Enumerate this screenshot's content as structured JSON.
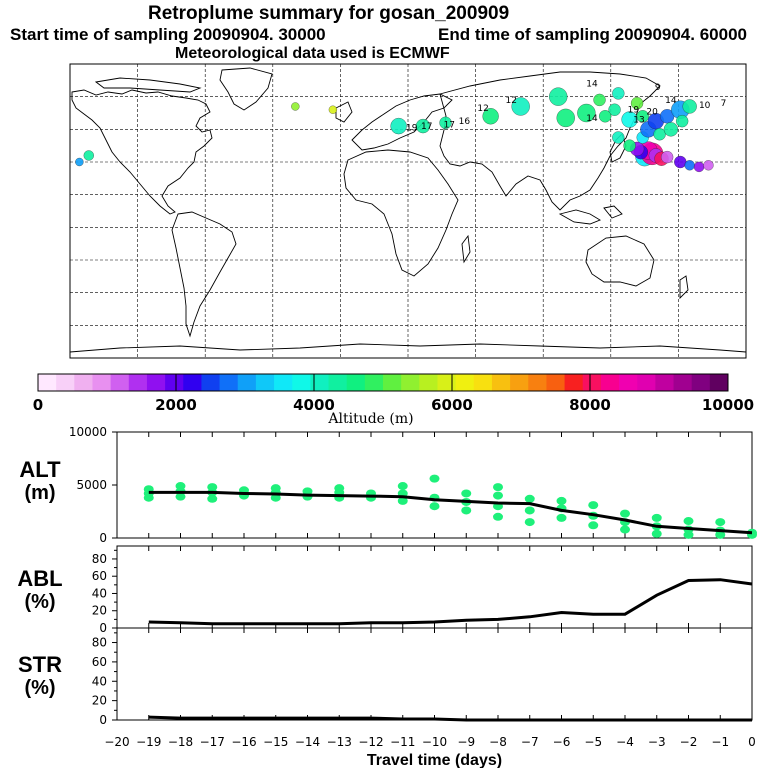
{
  "header": {
    "title": "Retroplume summary for gosan_200909",
    "start": "Start time of sampling 20090904. 30000",
    "end": "End time of sampling 20090904. 60000",
    "met": "Meteorological data used is ECMWF"
  },
  "colorbar": {
    "label": "Altitude (m)",
    "ticks": [
      "0",
      "2000",
      "4000",
      "6000",
      "8000",
      "10000"
    ],
    "colors": [
      "#ffe8ff",
      "#f8d0f8",
      "#f0b0f0",
      "#e890f0",
      "#d060f0",
      "#b030f0",
      "#9010f0",
      "#6000f0",
      "#3000f0",
      "#1040f0",
      "#1070f8",
      "#10a0f8",
      "#10c8f8",
      "#10e8f8",
      "#10f8e8",
      "#10f0c0",
      "#10f0a0",
      "#10f080",
      "#30f060",
      "#60f040",
      "#90f030",
      "#b8f020",
      "#d8f018",
      "#f0f010",
      "#f8e010",
      "#f8c010",
      "#f8a010",
      "#f88010",
      "#f86010",
      "#f82020",
      "#f81060",
      "#f80090",
      "#f000b0",
      "#e000b0",
      "#c000a0",
      "#a00090",
      "#800080",
      "#600060"
    ]
  },
  "chart_data": [
    {
      "type": "line",
      "name": "ALT",
      "ylabel": "ALT",
      "yunit": "(m)",
      "ylim": [
        0,
        10000
      ],
      "yticks": [
        0,
        5000,
        10000
      ],
      "xlim": [
        -20,
        0
      ],
      "x": [
        -19,
        -18,
        -17,
        -16,
        -15,
        -14,
        -13,
        -12,
        -11,
        -10,
        -9,
        -8,
        -7,
        -6,
        -5,
        -4,
        -3,
        -2,
        -1,
        0
      ],
      "mean": [
        4300,
        4300,
        4300,
        4200,
        4150,
        4050,
        4000,
        3950,
        3900,
        3600,
        3450,
        3300,
        3250,
        2600,
        2200,
        1700,
        1100,
        900,
        700,
        500
      ],
      "scatter": [
        [
          -19,
          4200
        ],
        [
          -19,
          4600
        ],
        [
          -19,
          3800
        ],
        [
          -18,
          4400
        ],
        [
          -18,
          4900
        ],
        [
          -18,
          3900
        ],
        [
          -17,
          4300
        ],
        [
          -17,
          4800
        ],
        [
          -17,
          3700
        ],
        [
          -16,
          4000
        ],
        [
          -16,
          4500
        ],
        [
          -15,
          3800
        ],
        [
          -15,
          4300
        ],
        [
          -15,
          4700
        ],
        [
          -14,
          3900
        ],
        [
          -14,
          4400
        ],
        [
          -13,
          3800
        ],
        [
          -13,
          4300
        ],
        [
          -13,
          4700
        ],
        [
          -12,
          3800
        ],
        [
          -12,
          4200
        ],
        [
          -11,
          3500
        ],
        [
          -11,
          4200
        ],
        [
          -11,
          4900
        ],
        [
          -10,
          3000
        ],
        [
          -10,
          3800
        ],
        [
          -10,
          5600
        ],
        [
          -9,
          2600
        ],
        [
          -9,
          3400
        ],
        [
          -9,
          4200
        ],
        [
          -8,
          2000
        ],
        [
          -8,
          3000
        ],
        [
          -8,
          4000
        ],
        [
          -8,
          4800
        ],
        [
          -7,
          1500
        ],
        [
          -7,
          2600
        ],
        [
          -7,
          3700
        ],
        [
          -6,
          1900
        ],
        [
          -6,
          2800
        ],
        [
          -6,
          3500
        ],
        [
          -5,
          1200
        ],
        [
          -5,
          2100
        ],
        [
          -5,
          3100
        ],
        [
          -4,
          800
        ],
        [
          -4,
          1500
        ],
        [
          -4,
          2300
        ],
        [
          -3,
          400
        ],
        [
          -3,
          1100
        ],
        [
          -3,
          1900
        ],
        [
          -2,
          300
        ],
        [
          -2,
          800
        ],
        [
          -2,
          1600
        ],
        [
          -1,
          300
        ],
        [
          -1,
          700
        ],
        [
          -1,
          1500
        ],
        [
          0,
          500
        ],
        [
          0,
          300
        ]
      ]
    },
    {
      "type": "line",
      "name": "ABL",
      "ylabel": "ABL",
      "yunit": "(%)",
      "ylim": [
        0,
        95
      ],
      "yticks": [
        0,
        20,
        40,
        60,
        80
      ],
      "x": [
        -19,
        -18,
        -17,
        -16,
        -15,
        -14,
        -13,
        -12,
        -11,
        -10,
        -9,
        -8,
        -7,
        -6,
        -5,
        -4,
        -3,
        -2,
        -1,
        0
      ],
      "values": [
        7,
        6,
        5,
        5,
        5,
        5,
        5,
        6,
        6,
        7,
        9,
        10,
        13,
        18,
        16,
        16,
        38,
        55,
        56,
        51
      ]
    },
    {
      "type": "line",
      "name": "STR",
      "ylabel": "STR",
      "yunit": "(%)",
      "ylim": [
        0,
        95
      ],
      "yticks": [
        0,
        20,
        40,
        60,
        80
      ],
      "x": [
        -19,
        -18,
        -17,
        -16,
        -15,
        -14,
        -13,
        -12,
        -11,
        -10,
        -9,
        -8,
        -7,
        -6,
        -5,
        -4,
        -3,
        -2,
        -1,
        0
      ],
      "values": [
        3,
        2,
        2,
        2,
        2,
        2,
        2,
        2,
        1,
        1,
        0,
        0,
        0,
        0,
        0,
        0,
        0,
        0,
        0,
        0
      ],
      "xlabel": "Travel time (days)",
      "xticks": [
        -20,
        -19,
        -18,
        -17,
        -16,
        -15,
        -14,
        -13,
        -12,
        -11,
        -10,
        -9,
        -8,
        -7,
        -6,
        -5,
        -4,
        -3,
        -2,
        -1,
        0
      ]
    }
  ],
  "map_labels": [
    {
      "text": "14",
      "lon": 98,
      "lat": 78
    },
    {
      "text": "12",
      "lon": 55,
      "lat": 68
    },
    {
      "text": "12",
      "lon": 40,
      "lat": 63
    },
    {
      "text": "16",
      "lon": 30,
      "lat": 55
    },
    {
      "text": "17",
      "lon": 22,
      "lat": 53
    },
    {
      "text": "17",
      "lon": 10,
      "lat": 52
    },
    {
      "text": "19",
      "lon": 2,
      "lat": 51
    },
    {
      "text": "14",
      "lon": 98,
      "lat": 57
    },
    {
      "text": "19",
      "lon": 120,
      "lat": 62
    },
    {
      "text": "20",
      "lon": 130,
      "lat": 61
    },
    {
      "text": "13",
      "lon": 123,
      "lat": 56
    },
    {
      "text": "14",
      "lon": 140,
      "lat": 68
    },
    {
      "text": "10",
      "lon": 158,
      "lat": 65
    },
    {
      "text": "7",
      "lon": 168,
      "lat": 66
    },
    {
      "text": "9",
      "lon": 133,
      "lat": 76
    }
  ]
}
